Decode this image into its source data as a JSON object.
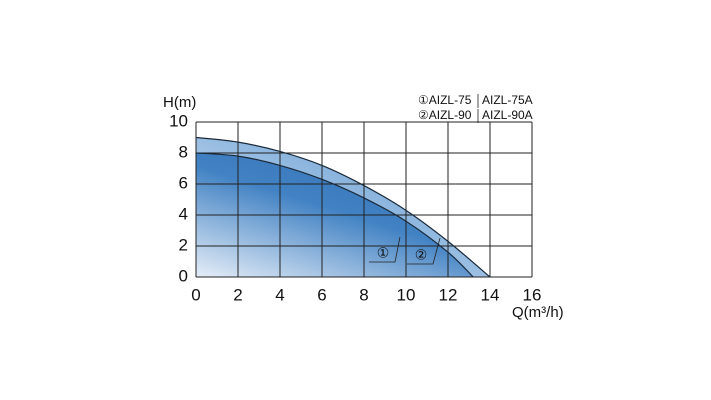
{
  "chart_data": {
    "type": "line",
    "y_label": "H(m)",
    "x_label": "Q(m³/h)",
    "xlim": [
      0,
      16
    ],
    "xticks": [
      0,
      2,
      4,
      6,
      8,
      10,
      12,
      14,
      16
    ],
    "ylim": [
      0,
      10
    ],
    "yticks": [
      0,
      2,
      4,
      6,
      8,
      10
    ],
    "grid": true,
    "series": [
      {
        "name": "①AIZL-75",
        "alt_name": "AIZL-75A",
        "marker": "①",
        "color": "#2f6fb3",
        "x": [
          0,
          2,
          4,
          6,
          8,
          10,
          12,
          13.2
        ],
        "values": [
          8,
          7.8,
          7.2,
          6.3,
          5.1,
          3.6,
          1.6,
          0
        ]
      },
      {
        "name": "②AIZL-90",
        "alt_name": "AIZL-90A",
        "marker": "②",
        "color": "#4a8bcb",
        "x": [
          0,
          2,
          4,
          6,
          8,
          10,
          12,
          14
        ],
        "values": [
          9,
          8.7,
          8.1,
          7.2,
          5.9,
          4.3,
          2.3,
          0
        ]
      }
    ]
  }
}
